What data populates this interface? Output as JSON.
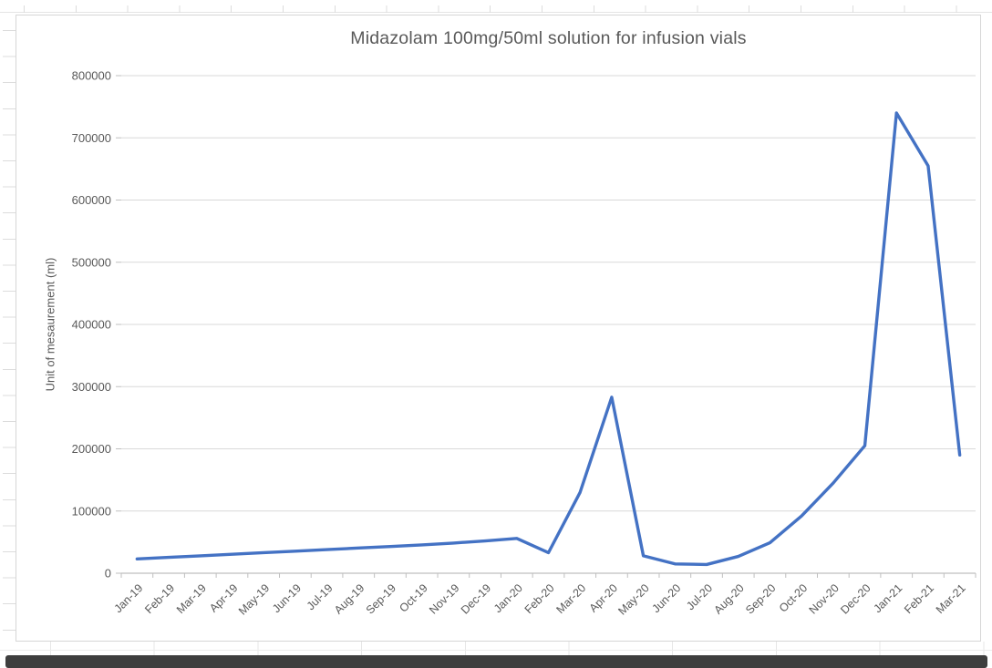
{
  "page": {
    "background": "#ffffff",
    "sheet_grid_color": "#dcdcdc",
    "bottom_bar_color": "#3e3e3e"
  },
  "chart_data": {
    "type": "line",
    "title": "Midazolam 100mg/50ml solution for infusion vials",
    "xlabel": "",
    "ylabel": "Unit of mesaurement (ml)",
    "categories": [
      "Jan-19",
      "Feb-19",
      "Mar-19",
      "Apr-19",
      "May-19",
      "Jun-19",
      "Jul-19",
      "Aug-19",
      "Sep-19",
      "Oct-19",
      "Nov-19",
      "Dec-19",
      "Jan-20",
      "Feb-20",
      "Mar-20",
      "Apr-20",
      "May-20",
      "Jun-20",
      "Jul-20",
      "Aug-20",
      "Sep-20",
      "Oct-20",
      "Nov-20",
      "Dec-20",
      "Jan-21",
      "Feb-21",
      "Mar-21"
    ],
    "values": [
      23000,
      25500,
      28000,
      30500,
      33000,
      35500,
      38000,
      40500,
      43000,
      45500,
      48500,
      52000,
      56000,
      33000,
      130000,
      283000,
      28000,
      15000,
      14000,
      27000,
      49000,
      92000,
      145000,
      205000,
      740000,
      655000,
      190000
    ],
    "ylim": [
      0,
      800000
    ],
    "ytick_step": 100000,
    "grid": true,
    "legend_position": "none",
    "line_color": "#4472C4",
    "grid_color": "#D9D9D9",
    "axis_color": "#BFBFBF",
    "text_color": "#595959"
  }
}
